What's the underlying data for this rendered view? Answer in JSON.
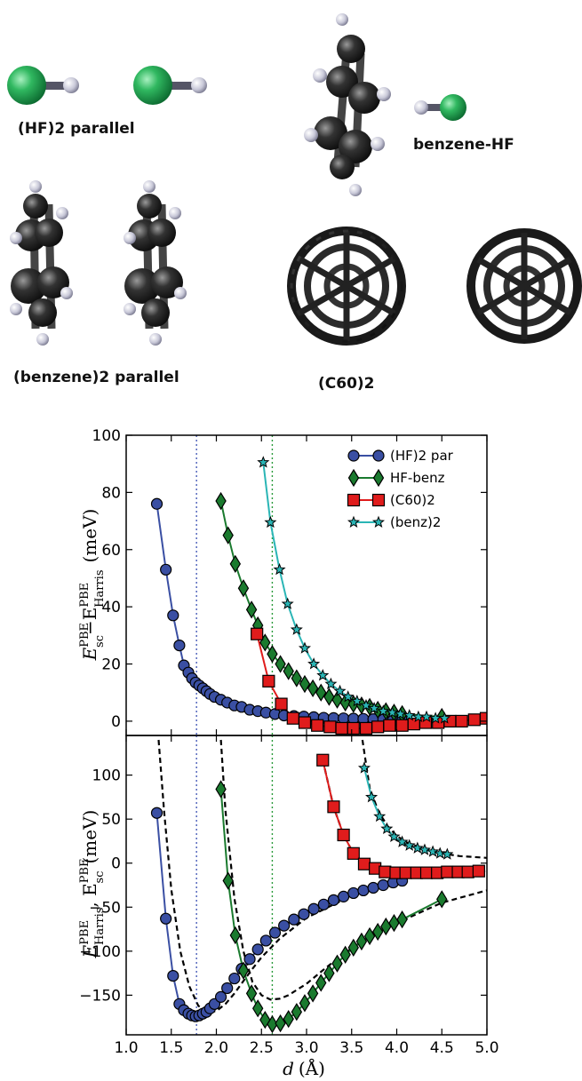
{
  "molecules": {
    "hf2": "(HF)2 parallel",
    "benzene_hf": "benzene-HF",
    "benzene2": "(benzene)2 parallel",
    "c60_2": "(C60)2"
  },
  "colors": {
    "hf2": "#3a4fa3",
    "hf_benz": "#1a7a2e",
    "c60": "#e01c1c",
    "benz2": "#2ab5b5",
    "dashed": "#000000",
    "vline_blue": "#4a5db8",
    "vline_green": "#2a9a3a"
  },
  "chart_data": [
    {
      "type": "line",
      "panel": "top",
      "ylabel_main": "E",
      "ylabel_sup1": "PBE",
      "ylabel_sub1": "sc",
      "ylabel_minus": "−E",
      "ylabel_sup2": "PBE",
      "ylabel_sub2": "Harris",
      "ylabel_unit": "(meV)",
      "xlim": [
        1.0,
        5.0
      ],
      "ylim": [
        -5,
        100
      ],
      "yticks": [
        "0",
        "20",
        "40",
        "60",
        "80",
        "100"
      ],
      "vlines": [
        1.78,
        2.62
      ],
      "legend_position": "top-right",
      "series": [
        {
          "key": "hf2",
          "name": "(HF)2 par",
          "marker": "circle",
          "x": [
            1.34,
            1.44,
            1.52,
            1.59,
            1.64,
            1.69,
            1.73,
            1.77,
            1.81,
            1.85,
            1.89,
            1.93,
            1.98,
            2.05,
            2.12,
            2.2,
            2.28,
            2.37,
            2.46,
            2.55,
            2.65,
            2.75,
            2.86,
            2.97,
            3.08,
            3.19,
            3.3,
            3.41,
            3.52,
            3.63,
            3.74,
            3.85,
            3.96,
            4.06
          ],
          "y": [
            76,
            53,
            37,
            26.5,
            19.5,
            17,
            15,
            13.5,
            12.5,
            11.5,
            10.5,
            9.5,
            8.5,
            7.5,
            6.5,
            5.5,
            5,
            4,
            3.5,
            3,
            2.5,
            2,
            1.8,
            1.6,
            1.4,
            1.2,
            1.1,
            1,
            0.9,
            0.8,
            0.7,
            0.6,
            0.5,
            0.4
          ]
        },
        {
          "key": "hf_benz",
          "name": "HF-benz",
          "marker": "diamond",
          "x": [
            2.05,
            2.13,
            2.21,
            2.3,
            2.39,
            2.46,
            2.54,
            2.62,
            2.71,
            2.8,
            2.89,
            2.98,
            3.07,
            3.16,
            3.25,
            3.34,
            3.43,
            3.52,
            3.61,
            3.7,
            3.79,
            3.88,
            3.97,
            4.06,
            4.5
          ],
          "y": [
            77,
            65,
            55,
            46.5,
            39,
            33.5,
            27.5,
            23.5,
            20,
            17.5,
            15,
            13,
            11.5,
            10,
            8.5,
            7.5,
            6.5,
            6,
            5.5,
            5,
            4,
            3.5,
            3,
            2.5,
            1.5
          ]
        },
        {
          "key": "c60",
          "name": "(C60)2",
          "marker": "square",
          "x": [
            2.45,
            2.58,
            2.72,
            2.85,
            2.98,
            3.12,
            3.26,
            3.39,
            3.52,
            3.66,
            3.79,
            3.92,
            4.06,
            4.19,
            4.32,
            4.46,
            4.59,
            4.72,
            4.86,
            4.99
          ],
          "y": [
            30.5,
            14,
            6,
            1,
            -0.5,
            -1.5,
            -2,
            -2.5,
            -2.5,
            -2.5,
            -2,
            -1.5,
            -1.5,
            -1,
            -0.5,
            -0.5,
            0,
            0,
            0.5,
            1
          ]
        },
        {
          "key": "benz2",
          "name": "(benz)2",
          "marker": "star",
          "x": [
            2.52,
            2.6,
            2.7,
            2.79,
            2.89,
            2.98,
            3.08,
            3.18,
            3.27,
            3.37,
            3.46,
            3.56,
            3.66,
            3.75,
            3.85,
            3.95,
            4.04,
            4.14,
            4.24,
            4.33,
            4.43,
            4.53
          ],
          "y": [
            90.5,
            69.5,
            53,
            41,
            32,
            25.5,
            20,
            16,
            13,
            10.5,
            8.5,
            7,
            5.5,
            4.5,
            3.5,
            3,
            2.5,
            2,
            1.5,
            1.5,
            1,
            1
          ]
        }
      ]
    },
    {
      "type": "line",
      "panel": "bottom",
      "ylabel_main": "E",
      "ylabel_sup1": "PBE",
      "ylabel_sub1": "Harris",
      "ylabel_comma": ", E",
      "ylabel_sup2": "PBE",
      "ylabel_sub2": "sc",
      "ylabel_unit": "(meV)",
      "xlabel_var": "d",
      "xlabel_unit": "(Å)",
      "xlim": [
        1.0,
        5.0
      ],
      "ylim": [
        -195,
        145
      ],
      "xticks": [
        "1.0",
        "1.5",
        "2.0",
        "2.5",
        "3.0",
        "3.5",
        "4.0",
        "4.5",
        "5.0"
      ],
      "yticks": [
        "−150",
        "−100",
        "−50",
        "0",
        "50",
        "100"
      ],
      "vlines": [
        1.78,
        2.62
      ],
      "series": [
        {
          "key": "hf2",
          "name": "(HF)2 par",
          "marker": "circle",
          "x": [
            1.34,
            1.44,
            1.52,
            1.59,
            1.64,
            1.69,
            1.73,
            1.77,
            1.81,
            1.85,
            1.89,
            1.93,
            1.98,
            2.05,
            2.12,
            2.2,
            2.28,
            2.37,
            2.46,
            2.55,
            2.65,
            2.75,
            2.86,
            2.97,
            3.08,
            3.19,
            3.3,
            3.41,
            3.52,
            3.63,
            3.74,
            3.85,
            3.96,
            4.06
          ],
          "y": [
            57,
            -63,
            -128,
            -160,
            -167,
            -171,
            -173,
            -174,
            -173,
            -171,
            -169,
            -165,
            -160,
            -152,
            -142,
            -131,
            -120,
            -109,
            -98,
            -88,
            -79,
            -71,
            -64,
            -58,
            -52,
            -47,
            -42,
            -38,
            -34,
            -31,
            -28,
            -25,
            -22,
            -20
          ]
        },
        {
          "key": "hf_benz",
          "name": "HF-benz",
          "marker": "diamond",
          "x": [
            2.05,
            2.13,
            2.21,
            2.3,
            2.39,
            2.46,
            2.54,
            2.62,
            2.71,
            2.8,
            2.89,
            2.98,
            3.07,
            3.16,
            3.25,
            3.34,
            3.43,
            3.52,
            3.61,
            3.7,
            3.79,
            3.88,
            3.97,
            4.06,
            4.5
          ],
          "y": [
            84,
            -20,
            -82,
            -122,
            -148,
            -165,
            -178,
            -183,
            -182,
            -177,
            -169,
            -159,
            -148,
            -136,
            -125,
            -114,
            -104,
            -96,
            -89,
            -83,
            -78,
            -72,
            -68,
            -64,
            -41
          ]
        },
        {
          "key": "c60",
          "name": "(C60)2",
          "marker": "square",
          "x": [
            3.18,
            3.3,
            3.41,
            3.52,
            3.64,
            3.76,
            3.87,
            3.99,
            4.1,
            4.22,
            4.33,
            4.45,
            4.56,
            4.68,
            4.79,
            4.91
          ],
          "y": [
            117,
            64,
            32,
            11,
            -1,
            -6,
            -10,
            -11,
            -11,
            -11,
            -11,
            -11,
            -10,
            -10,
            -10,
            -9
          ]
        },
        {
          "key": "benz2",
          "name": "(benz)2",
          "marker": "star",
          "x": [
            3.64,
            3.72,
            3.81,
            3.89,
            3.97,
            4.06,
            4.14,
            4.23,
            4.31,
            4.4,
            4.48,
            4.56
          ],
          "y": [
            108,
            75,
            53,
            39,
            30,
            24,
            20,
            17,
            15,
            13,
            11,
            10
          ]
        }
      ],
      "dashed_curves": [
        {
          "x": [
            1.36,
            1.42,
            1.5,
            1.6,
            1.7,
            1.8,
            1.9,
            2.0,
            2.1,
            2.2,
            2.3,
            2.4,
            2.5,
            2.7,
            3.0,
            3.5,
            4.0
          ],
          "y": [
            140,
            60,
            -30,
            -100,
            -140,
            -162,
            -170,
            -168,
            -160,
            -148,
            -134,
            -120,
            -107,
            -86,
            -62,
            -37,
            -22
          ]
        },
        {
          "x": [
            2.05,
            2.1,
            2.2,
            2.3,
            2.4,
            2.5,
            2.6,
            2.7,
            2.8,
            3.0,
            3.2,
            3.4,
            3.6,
            3.8,
            4.0,
            4.5,
            5.0
          ],
          "y": [
            140,
            60,
            -40,
            -100,
            -135,
            -150,
            -155,
            -154,
            -150,
            -137,
            -120,
            -104,
            -90,
            -78,
            -68,
            -45,
            -31
          ]
        },
        {
          "x": [
            3.18,
            3.3,
            3.41,
            3.52,
            3.64,
            3.76,
            3.87,
            3.99,
            4.2,
            4.5,
            5.0
          ],
          "y": [
            117,
            64,
            32,
            11,
            -1,
            -6,
            -10,
            -11,
            -11,
            -11,
            -9
          ]
        },
        {
          "x": [
            3.62,
            3.7,
            3.8,
            3.9,
            4.0,
            4.1,
            4.3,
            4.5,
            4.7,
            5.0
          ],
          "y": [
            140,
            85,
            58,
            42,
            31,
            24,
            16,
            11,
            8,
            6
          ]
        }
      ]
    }
  ]
}
